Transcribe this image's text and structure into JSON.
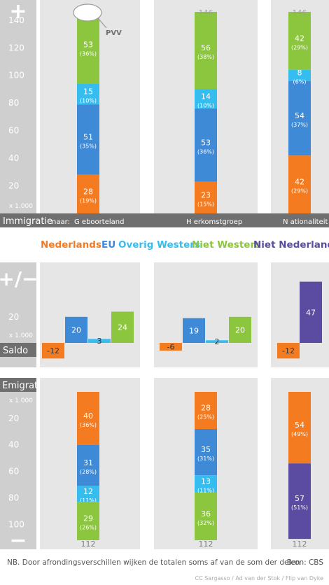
{
  "colors": {
    "Nederlands": "#f47b20",
    "EU": "#3e8ad7",
    "Overig Westers": "#36bdf0",
    "Niet Westers": "#8cc63f",
    "Niet Nederlands": "#5b4ca1",
    "panel_bg": "#e6e6e6",
    "axis_bg": "#cfcfcf",
    "label_dark": "#6f6f6f"
  },
  "legend": [
    "Nederlands",
    "EU",
    "Overig Westers",
    "Niet Westers",
    "Niet Nederlands"
  ],
  "labels": {
    "plus": "+",
    "plusminus": "+/−",
    "minus": "−",
    "immigratie": "Immigratie",
    "saldo": "Saldo",
    "emigratie": "Emigratie",
    "unit": "x 1.000",
    "naar": "naar:",
    "pvv": "PVV",
    "note": "NB. Door afrondingsverschillen wijken de totalen soms af van de som der delen",
    "bron": "Bron: CBS",
    "credit": "CC Sargasso / Ad van der Stok / Flip van Dyke"
  },
  "chart_data": [
    {
      "type": "bar",
      "name": "Immigratie",
      "stacked": true,
      "categories": [
        "Geboorteland",
        "Herkomstgroep",
        "Nationaliteit"
      ],
      "series": [
        {
          "name": "Nederlands",
          "values": [
            28,
            23,
            42
          ],
          "pct": [
            "(19%)",
            "(15%)",
            "(29%)"
          ]
        },
        {
          "name": "EU",
          "values": [
            51,
            53,
            54
          ],
          "pct": [
            "(35%)",
            "(36%)",
            "(37%)"
          ]
        },
        {
          "name": "Overig Westers",
          "values": [
            15,
            14,
            8
          ],
          "pct": [
            "(10%)",
            "(10%)",
            "(6%)"
          ]
        },
        {
          "name": "Niet Westers",
          "values": [
            53,
            56,
            42
          ],
          "pct": [
            "(36%)",
            "(38%)",
            "(29%)"
          ]
        }
      ],
      "totals": [
        146,
        146,
        146
      ],
      "y_ticks": [
        20,
        40,
        60,
        80,
        100,
        120,
        140
      ],
      "ylim": [
        0,
        146
      ]
    },
    {
      "type": "bar",
      "name": "Saldo",
      "groups": [
        {
          "series": [
            "Nederlands",
            "EU",
            "Overig Westers",
            "Niet Westers"
          ],
          "values": [
            -12,
            20,
            3,
            24
          ]
        },
        {
          "series": [
            "Nederlands",
            "EU",
            "Overig Westers",
            "Niet Westers"
          ],
          "values": [
            -6,
            19,
            2,
            20
          ]
        },
        {
          "series": [
            "Nederlands",
            "Niet Nederlands"
          ],
          "values": [
            -12,
            47
          ]
        }
      ],
      "y_ticks": [
        20
      ],
      "ylim": [
        -12,
        50
      ]
    },
    {
      "type": "bar",
      "name": "Emigratie",
      "stacked": true,
      "categories": [
        "Geboorteland",
        "Herkomstgroep",
        "Nationaliteit"
      ],
      "series": [
        {
          "name": "Nederlands",
          "values": [
            40,
            28,
            54
          ],
          "pct": [
            "(36%)",
            "(25%)",
            "(49%)"
          ]
        },
        {
          "name": "EU",
          "values": [
            31,
            35,
            null
          ],
          "pct": [
            "(28%)",
            "(31%)",
            ""
          ]
        },
        {
          "name": "Overig Westers",
          "values": [
            12,
            13,
            null
          ],
          "pct": [
            "(11%)",
            "(11%)",
            ""
          ]
        },
        {
          "name": "Niet Westers",
          "values": [
            29,
            36,
            null
          ],
          "pct": [
            "(26%)",
            "(32%)",
            ""
          ]
        },
        {
          "name": "Niet Nederlands",
          "values": [
            null,
            null,
            57
          ],
          "pct": [
            "",
            "",
            "(51%)"
          ]
        }
      ],
      "totals": [
        112,
        112,
        112
      ],
      "y_ticks": [
        20,
        40,
        60,
        80,
        100
      ],
      "ylim": [
        0,
        112
      ]
    }
  ]
}
